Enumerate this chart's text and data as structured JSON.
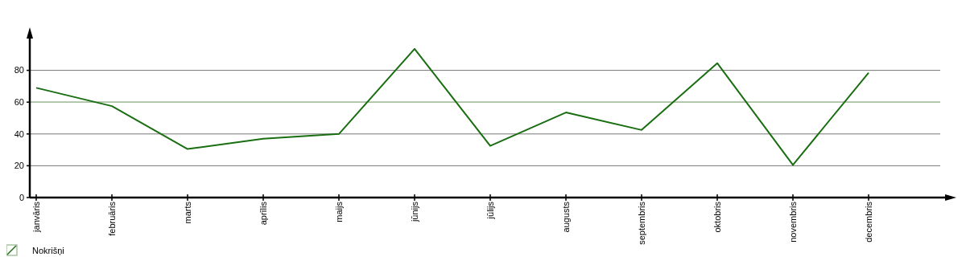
{
  "chart_data": {
    "type": "line",
    "categories": [
      "janvāris",
      "februāris",
      "marts",
      "aprīlis",
      "maijs",
      "jūnijs",
      "jūlijs",
      "augusts",
      "septembris",
      "oktobris",
      "novembris",
      "decembris"
    ],
    "series": [
      {
        "name": "Nokrišņi",
        "color": "#1a6e12",
        "values": [
          69,
          57.5,
          30.5,
          37,
          40,
          93.5,
          32.5,
          53.5,
          42.5,
          84.5,
          20.5,
          78.5
        ]
      }
    ],
    "ylim": [
      0,
      100
    ],
    "yticks": [
      0,
      20,
      40,
      60,
      80
    ],
    "grid": "y",
    "legend": "bottom left",
    "marker": "none",
    "line_style": "solid",
    "ref_lines": [
      {
        "axis": "y",
        "value": 60,
        "color": "#a9c3a0"
      }
    ]
  }
}
